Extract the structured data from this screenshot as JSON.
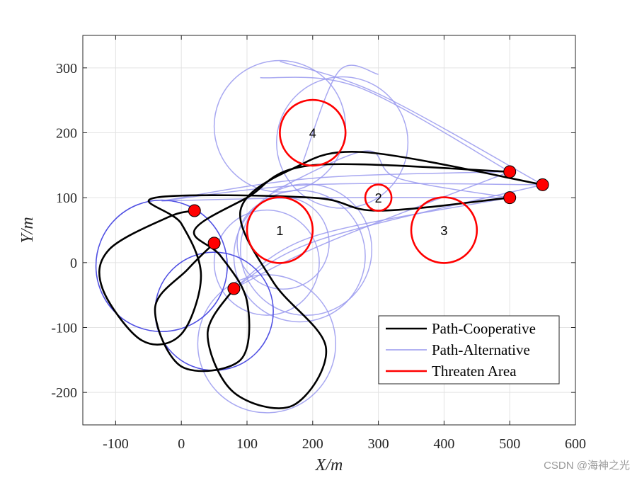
{
  "chart_data": {
    "type": "line",
    "title": "",
    "xlabel": "X/m",
    "ylabel": "Y/m",
    "xlim": [
      -150,
      600
    ],
    "ylim": [
      -250,
      350
    ],
    "xticks": [
      -100,
      0,
      100,
      200,
      300,
      400,
      500,
      600
    ],
    "yticks": [
      -200,
      -100,
      0,
      100,
      200,
      300
    ],
    "grid": true,
    "legend_position": "bottom-right",
    "legend": [
      {
        "label": "Path-Cooperative",
        "color": "#000000",
        "style": "solid"
      },
      {
        "label": "Path-Alternative",
        "color": "#9999ee",
        "style": "solid"
      },
      {
        "label": "Threaten Area",
        "color": "#ff0000",
        "style": "solid"
      }
    ],
    "threat_areas": [
      {
        "label": "1",
        "cx": 150,
        "cy": 50,
        "r": 50
      },
      {
        "label": "2",
        "cx": 300,
        "cy": 100,
        "r": 20
      },
      {
        "label": "3",
        "cx": 400,
        "cy": 50,
        "r": 50
      },
      {
        "label": "4",
        "cx": 200,
        "cy": 200,
        "r": 50
      }
    ],
    "start_points": [
      [
        20,
        80
      ],
      [
        50,
        30
      ],
      [
        80,
        -40
      ]
    ],
    "end_points": [
      [
        500,
        140
      ],
      [
        550,
        120
      ],
      [
        500,
        100
      ]
    ],
    "alternative_circles": [
      {
        "cx": 150,
        "cy": 210,
        "r": 100
      },
      {
        "cx": 245,
        "cy": 185,
        "r": 100
      },
      {
        "cx": 180,
        "cy": 10,
        "r": 100
      },
      {
        "cx": 130,
        "cy": 0,
        "r": 80
      },
      {
        "cx": 155,
        "cy": 30,
        "r": 70
      },
      {
        "cx": -30,
        "cy": -5,
        "r": 100
      },
      {
        "cx": 50,
        "cy": -75,
        "r": 90
      },
      {
        "cx": 130,
        "cy": -125,
        "r": 105
      },
      {
        "cx": 190,
        "cy": 20,
        "r": 100
      }
    ],
    "alternative_paths": [
      [
        [
          -30,
          95
        ],
        [
          200,
          100
        ],
        [
          500,
          100
        ]
      ],
      [
        [
          -30,
          95
        ],
        [
          200,
          120
        ],
        [
          550,
          120
        ]
      ],
      [
        [
          -30,
          95
        ],
        [
          200,
          130
        ],
        [
          500,
          140
        ]
      ],
      [
        [
          80,
          -40
        ],
        [
          200,
          40
        ],
        [
          500,
          100
        ]
      ],
      [
        [
          80,
          -40
        ],
        [
          210,
          35
        ],
        [
          550,
          120
        ]
      ],
      [
        [
          80,
          -40
        ],
        [
          220,
          30
        ],
        [
          500,
          140
        ]
      ],
      [
        [
          120,
          285
        ],
        [
          270,
          270
        ],
        [
          500,
          140
        ]
      ],
      [
        [
          150,
          310
        ],
        [
          300,
          260
        ],
        [
          550,
          120
        ]
      ],
      [
        [
          140,
          110
        ],
        [
          280,
          172
        ],
        [
          330,
          130
        ],
        [
          500,
          100
        ]
      ],
      [
        [
          185,
          155
        ],
        [
          240,
          295
        ],
        [
          300,
          290
        ]
      ]
    ],
    "cooperative_paths": [
      [
        [
          20,
          80
        ],
        [
          -20,
          70
        ],
        [
          -110,
          20
        ],
        [
          -120,
          -40
        ],
        [
          -60,
          -120
        ],
        [
          0,
          -110
        ],
        [
          30,
          -20
        ],
        [
          0,
          60
        ],
        [
          -40,
          100
        ],
        [
          200,
          100
        ],
        [
          300,
          80
        ],
        [
          500,
          100
        ]
      ],
      [
        [
          50,
          30
        ],
        [
          10,
          -10
        ],
        [
          -40,
          -70
        ],
        [
          0,
          -160
        ],
        [
          90,
          -150
        ],
        [
          100,
          -60
        ],
        [
          60,
          10
        ],
        [
          20,
          50
        ],
        [
          100,
          100
        ],
        [
          200,
          150
        ],
        [
          500,
          140
        ]
      ],
      [
        [
          80,
          -40
        ],
        [
          40,
          -110
        ],
        [
          80,
          -200
        ],
        [
          170,
          -220
        ],
        [
          220,
          -130
        ],
        [
          140,
          -30
        ],
        [
          90,
          80
        ],
        [
          170,
          145
        ],
        [
          280,
          170
        ],
        [
          550,
          120
        ]
      ]
    ]
  }
}
